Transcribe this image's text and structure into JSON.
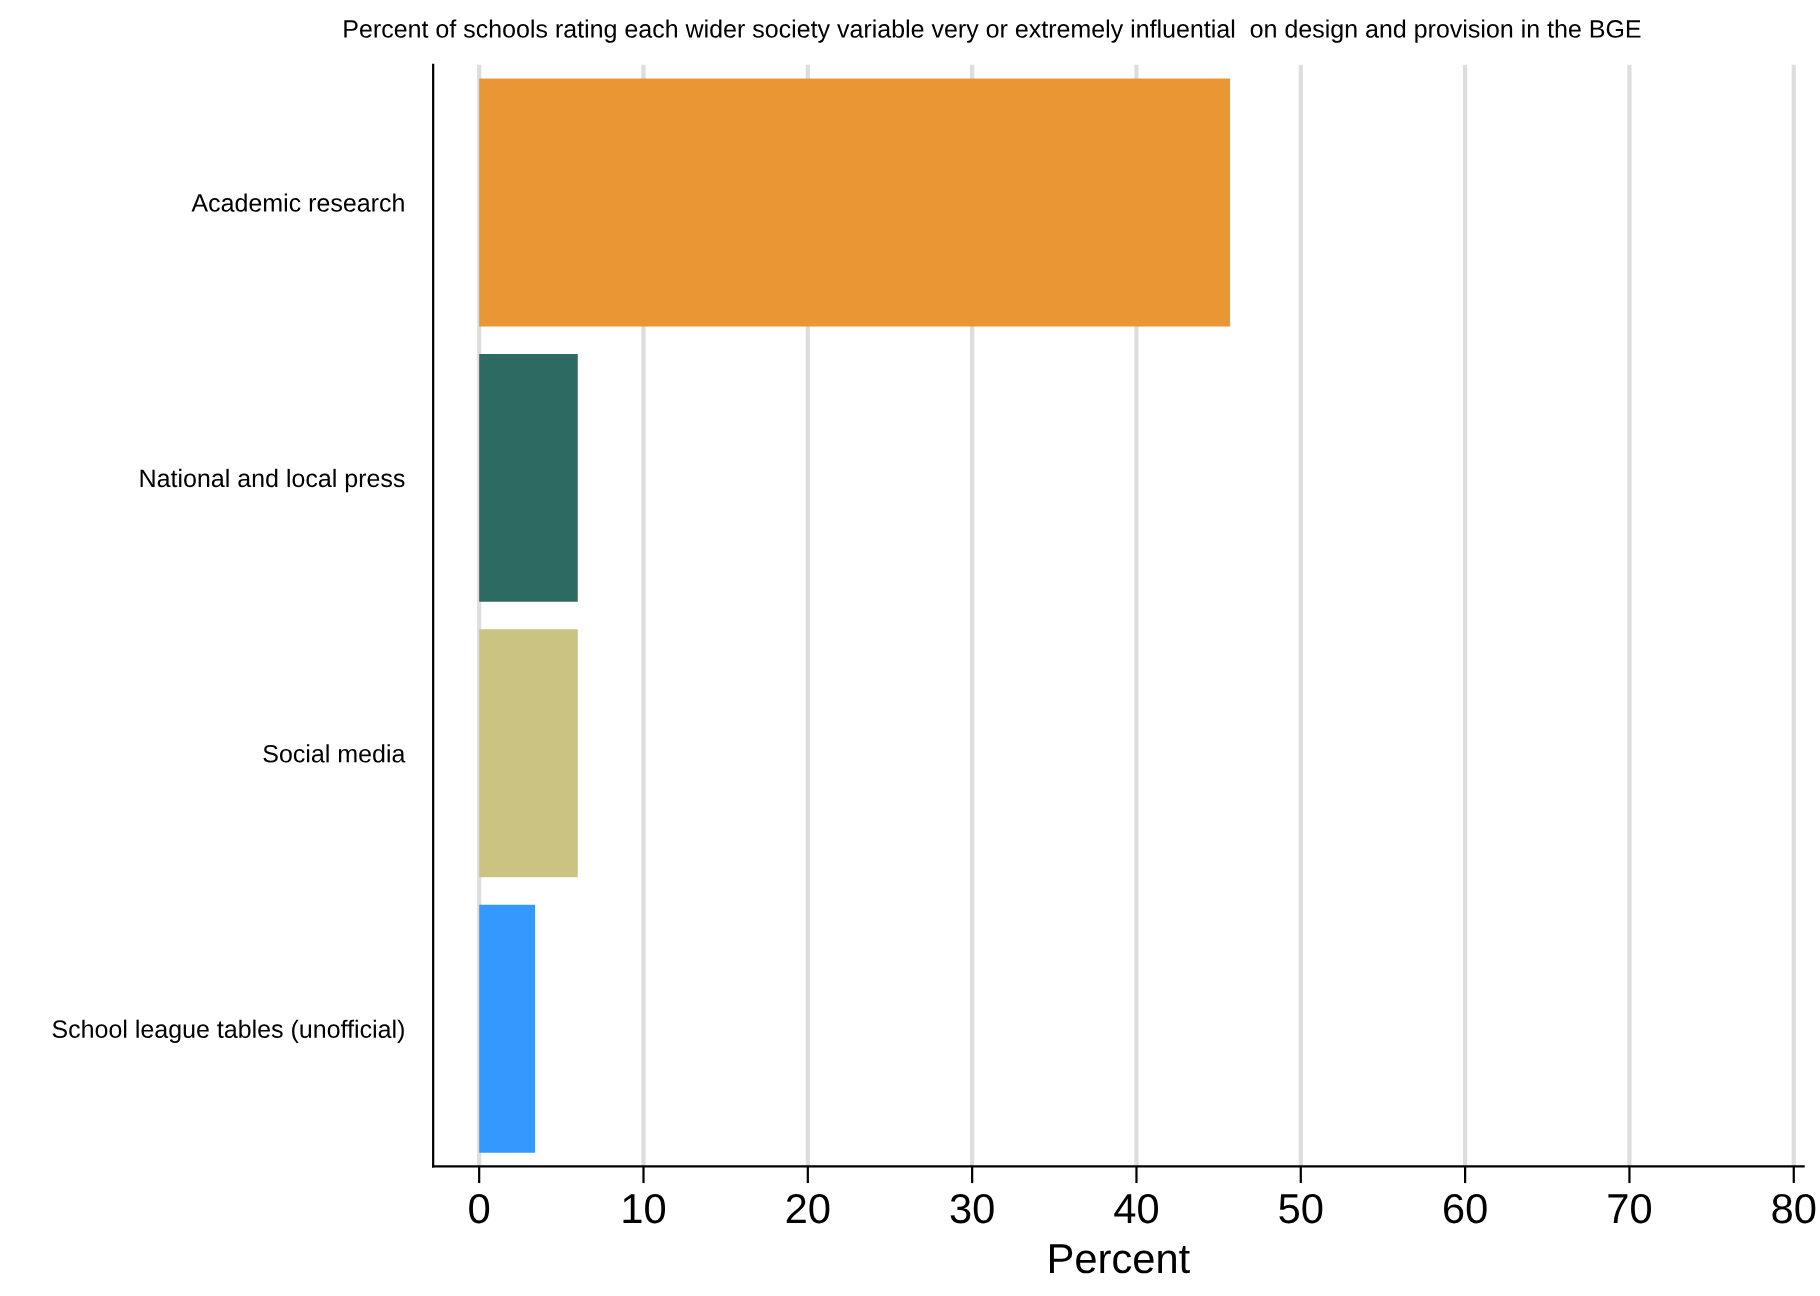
{
  "chart_data": {
    "type": "bar",
    "orientation": "horizontal",
    "title": "Percent of schools rating each wider society variable very or extremely influential  on design and provision in the BGE",
    "xlabel": "Percent",
    "categories": [
      "Academic research",
      "National and local press",
      "Social media",
      "School league tables (unofficial)"
    ],
    "values": [
      45.7,
      6.0,
      6.0,
      3.4
    ],
    "colors": [
      "#e99735",
      "#2d6b62",
      "#cbc382",
      "#3499fd"
    ],
    "xlim": [
      -2.8,
      80.6
    ],
    "xticks": [
      0,
      10,
      20,
      30,
      40,
      50,
      60,
      70,
      80
    ],
    "grid": "x",
    "legend": false
  }
}
